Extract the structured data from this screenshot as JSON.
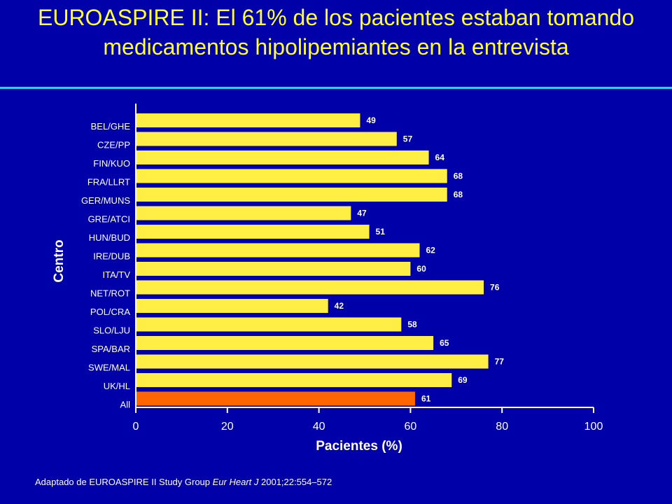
{
  "slide": {
    "title": "EUROASPIRE II: El 61% de los pacientes estaban tomando medicamentos hipolipemiantes en la entrevista",
    "footnote": {
      "prefix": "Adaptado de EUROASPIRE II Study Group ",
      "journal": "Eur Heart J",
      "suffix": " 2001;22:554–572"
    }
  },
  "colors": {
    "background": "#0000a8",
    "title": "#ffff33",
    "rule": "#33ccff",
    "bar": "#ffee44",
    "highlight_bar": "#ff6600",
    "text": "#ffffff"
  },
  "chart_data": {
    "type": "bar",
    "orientation": "horizontal",
    "title": "",
    "xlabel": "Pacientes (%)",
    "ylabel": "Centro",
    "xlim": [
      0,
      100
    ],
    "xticks": [
      0,
      20,
      40,
      60,
      80,
      100
    ],
    "grid": false,
    "categories": [
      "BEL/GHE",
      "CZE/PP",
      "FIN/KUO",
      "FRA/LLRT",
      "GER/MUNS",
      "GRE/ATCI",
      "HUN/BUD",
      "IRE/DUB",
      "ITA/TV",
      "NET/ROT",
      "POL/CRA",
      "SLO/LJU",
      "SPA/BAR",
      "SWE/MAL",
      "UK/HL",
      "All"
    ],
    "values": [
      49,
      57,
      64,
      68,
      68,
      47,
      51,
      62,
      60,
      76,
      42,
      58,
      65,
      77,
      69,
      61
    ],
    "highlight": [
      "All"
    ]
  }
}
